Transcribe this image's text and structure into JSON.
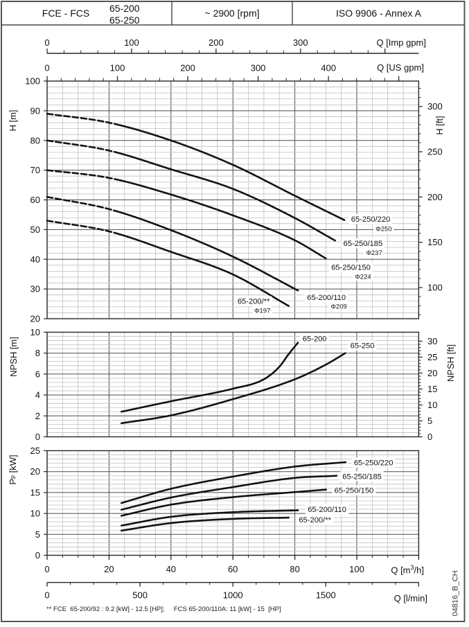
{
  "header": {
    "product": "FCE - FCS",
    "model_line1": "65-200",
    "model_line2": "65-250",
    "speed": "~ 2900 [rpm]",
    "standard": "ISO 9906 - Annex A"
  },
  "footnote": "** FCE  65-200/92 : 9.2 [kW] - 12.5 [HP];     FCS 65-200/110A: 11 [kW] - 15  [HP]",
  "doc_code": "04816_B_CH",
  "colors": {
    "curve": "#121212",
    "grid_major": "#4e4e4e",
    "grid_minor": "#bfbfbf",
    "frame": "#262626",
    "page_border": "#555555",
    "text": "#111111"
  },
  "axis_titles": {
    "h_left": "H [m]",
    "h_right": "H [ft]",
    "npsh_left": "NPSH [m]",
    "npsh_right": "NPSH [ft]",
    "p_sym": "P",
    "p_sub": "p",
    "p_unit": " [kW]",
    "q_m3h_pre": "Q [m",
    "q_m3h_sup": "3",
    "q_m3h_post": "/h]",
    "q_lmin": "Q [l/min]",
    "q_imp": "Q [Imp gpm]",
    "q_us": "Q [US gpm]"
  },
  "x_axes": {
    "imp_gpm": {
      "m3h_per_unit": 0.272765,
      "major_step": 100,
      "major_max": 400,
      "labeled_max": 300,
      "minor_step": 20
    },
    "us_gpm": {
      "m3h_per_unit": 0.227125,
      "major_step": 100,
      "major_max": 500,
      "labeled_max": 400,
      "minor_step": 20
    },
    "m3h": {
      "m3h_per_unit": 1,
      "major_step": 20,
      "major_max": 120,
      "labeled_max": 100,
      "minor_step": 5
    },
    "lmin": {
      "m3h_per_unit": 0.06,
      "major_step": 500,
      "major_max": 2000,
      "labeled_max": 1500,
      "minor_step": 125
    }
  },
  "chart_data": [
    {
      "type": "line",
      "title": "Head curves",
      "xlabel": "Q [m3/h]",
      "ylabel": "H [m]",
      "xlim": [
        0,
        120
      ],
      "ylim": [
        20,
        100
      ],
      "y_major": 10,
      "y_minor": 2,
      "right_axis": {
        "unit": "ft",
        "m_per_unit": 0.3048,
        "labels": [
          100,
          150,
          200,
          250,
          300
        ],
        "minor_step": 10,
        "minor_min": 70,
        "minor_max": 320
      },
      "dash_until": 22.5,
      "series": [
        {
          "name": "65-250/220",
          "impeller": "Φ250",
          "x": [
            0,
            20,
            40,
            60,
            80,
            96
          ],
          "y": [
            89,
            86,
            80,
            71.8,
            61.4,
            53.2
          ],
          "label_at": [
            104.5,
            53.6
          ],
          "impeller_at": [
            108.7,
            50.3
          ]
        },
        {
          "name": "65-250/185",
          "impeller": "Φ237",
          "x": [
            0,
            20,
            40,
            60,
            80,
            93
          ],
          "y": [
            80,
            76.6,
            70.3,
            63.7,
            53.9,
            46.3
          ],
          "label_at": [
            102.0,
            45.4
          ],
          "impeller_at": [
            105.6,
            42.3
          ]
        },
        {
          "name": "65-250/150",
          "impeller": "Φ224",
          "x": [
            0,
            20,
            40,
            60,
            80,
            90
          ],
          "y": [
            70,
            67.4,
            61.8,
            54.8,
            46.4,
            40.3
          ],
          "label_at": [
            98.1,
            37.4
          ],
          "impeller_at": [
            102.0,
            34.2
          ]
        },
        {
          "name": "65-200/110",
          "impeller": "Φ209",
          "x": [
            0,
            20,
            40,
            60,
            81
          ],
          "y": [
            61,
            56.9,
            49.8,
            40.9,
            29.5
          ],
          "label_at": [
            90.2,
            27.2
          ],
          "impeller_at": [
            94.2,
            24.2
          ]
        },
        {
          "name": "65-200/**",
          "impeller": "Φ197",
          "x": [
            0,
            20,
            40,
            60,
            78
          ],
          "y": [
            53,
            49.4,
            42.5,
            34.9,
            24.3
          ],
          "label_at": [
            66.7,
            25.9
          ],
          "impeller_at": [
            69.5,
            22.8
          ]
        }
      ]
    },
    {
      "type": "line",
      "title": "NPSH curves",
      "xlabel": "Q [m3/h]",
      "ylabel": "NPSH [m]",
      "xlim": [
        0,
        120
      ],
      "ylim": [
        0,
        10
      ],
      "y_major": 2,
      "y_minor": 0.4,
      "right_axis": {
        "unit": "ft",
        "m_per_unit": 0.3048,
        "labels": [
          0,
          5,
          10,
          15,
          20,
          25,
          30
        ],
        "minor_step": 1,
        "minor_min": 0,
        "minor_max": 30
      },
      "series": [
        {
          "name": "65-200",
          "x": [
            24,
            40,
            60,
            70,
            75,
            78,
            81
          ],
          "y": [
            2.4,
            3.4,
            4.6,
            5.5,
            6.7,
            7.9,
            9.0
          ],
          "label_at": [
            86.4,
            9.4
          ]
        },
        {
          "name": "65-250",
          "x": [
            24,
            40,
            60,
            80,
            90,
            96.3
          ],
          "y": [
            1.3,
            2.05,
            3.6,
            5.5,
            6.9,
            8.0
          ],
          "label_at": [
            101.8,
            8.73
          ]
        }
      ]
    },
    {
      "type": "line",
      "title": "Power curves",
      "xlabel": "Q [m3/h]",
      "ylabel": "Pp [kW]",
      "xlim": [
        0,
        120
      ],
      "ylim": [
        0,
        25
      ],
      "y_major": 5,
      "y_minor": 1,
      "series": [
        {
          "name": "65-250/220",
          "x": [
            24,
            40,
            60,
            80,
            96.4
          ],
          "y": [
            12.5,
            15.9,
            18.8,
            21.2,
            22.25
          ],
          "label_at": [
            105.4,
            22.15
          ]
        },
        {
          "name": "65-250/185",
          "x": [
            24,
            40,
            60,
            80,
            93.5
          ],
          "y": [
            10.9,
            13.8,
            16.3,
            18.5,
            19.0
          ],
          "label_at": [
            101.7,
            18.92
          ]
        },
        {
          "name": "65-250/150",
          "x": [
            24,
            40,
            60,
            80,
            90.1
          ],
          "y": [
            9.45,
            12.1,
            13.9,
            15.1,
            15.7
          ],
          "label_at": [
            99.1,
            15.53
          ]
        },
        {
          "name": "65-200/110",
          "x": [
            24,
            40,
            60,
            81
          ],
          "y": [
            7.1,
            9.2,
            10.3,
            10.75
          ],
          "label_at": [
            90.4,
            11.0
          ]
        },
        {
          "name": "65-200/**",
          "x": [
            24,
            40,
            60,
            78
          ],
          "y": [
            5.9,
            7.7,
            8.7,
            9.0
          ],
          "label_at": [
            86.5,
            8.53
          ]
        }
      ]
    }
  ]
}
